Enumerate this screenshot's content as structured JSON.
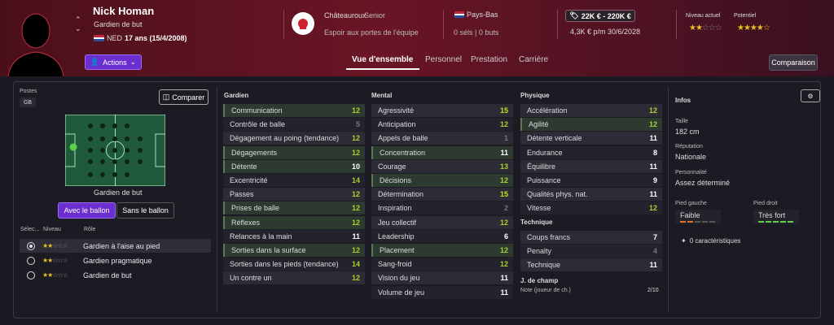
{
  "header": {
    "name": "Nick Homan",
    "role": "Gardien de but",
    "nationality": "NED",
    "age": "17 ans (15/4/2008)",
    "actions_label": "Actions",
    "club": {
      "name": "Châteauroux",
      "level": "Senior",
      "description": "Espoir aux portes de l'équipe"
    },
    "national_team": {
      "name": "Pays-Bas",
      "caps": "0 séls | 0 buts"
    },
    "value": "22K € - 220K €",
    "wage": "4,3K € p/m 30/6/2028",
    "current_ability_label": "Niveau actuel",
    "potential_label": "Potentiel",
    "current_stars": 2,
    "potential_stars": 4.5
  },
  "tabs": [
    "Vue d'ensemble",
    "Personnel",
    "Prestation",
    "Carrière"
  ],
  "compare_label": "Comparaison",
  "left": {
    "positions_label": "Postes",
    "position": "GB",
    "compare_btn": "Comparer",
    "pitch_label": "Gardien de but",
    "with_ball": "Avec le ballon",
    "without_ball": "Sans le ballon",
    "hdr_select": "Sélec...",
    "hdr_level": "Niveau",
    "hdr_role": "Rôle",
    "roles": [
      {
        "name": "Gardien à l'aise au pied",
        "stars": 2,
        "selected": true
      },
      {
        "name": "Gardien pragmatique",
        "stars": 2,
        "selected": false
      },
      {
        "name": "Gardien de but",
        "stars": 2,
        "selected": false
      }
    ]
  },
  "goalkeeping": {
    "title": "Gardien",
    "items": [
      {
        "name": "Communication",
        "value": "12",
        "hl": true
      },
      {
        "name": "Contrôle de balle",
        "value": "5",
        "hl": false
      },
      {
        "name": "Dégagement au poing (tendance)",
        "value": "12",
        "hl": false
      },
      {
        "name": "Dégagements",
        "value": "12",
        "hl": true
      },
      {
        "name": "Détente",
        "value": "10",
        "hl": true
      },
      {
        "name": "Excentricité",
        "value": "14",
        "hl": false
      },
      {
        "name": "Passes",
        "value": "12",
        "hl": false
      },
      {
        "name": "Prises de balle",
        "value": "12",
        "hl": true
      },
      {
        "name": "Réflexes",
        "value": "12",
        "hl": true
      },
      {
        "name": "Relances à la main",
        "value": "11",
        "hl": false
      },
      {
        "name": "Sorties dans la surface",
        "value": "12",
        "hl": true
      },
      {
        "name": "Sorties dans les pieds (tendance)",
        "value": "14",
        "hl": false
      },
      {
        "name": "Un contre un",
        "value": "12",
        "hl": false
      }
    ]
  },
  "mental": {
    "title": "Mental",
    "items": [
      {
        "name": "Agressivité",
        "value": "15",
        "hl": false
      },
      {
        "name": "Anticipation",
        "value": "12",
        "hl": false
      },
      {
        "name": "Appels de balle",
        "value": "1",
        "hl": false
      },
      {
        "name": "Concentration",
        "value": "11",
        "hl": true
      },
      {
        "name": "Courage",
        "value": "13",
        "hl": false
      },
      {
        "name": "Décisions",
        "value": "12",
        "hl": true
      },
      {
        "name": "Détermination",
        "value": "15",
        "hl": false
      },
      {
        "name": "Inspiration",
        "value": "2",
        "hl": false
      },
      {
        "name": "Jeu collectif",
        "value": "12",
        "hl": false
      },
      {
        "name": "Leadership",
        "value": "6",
        "hl": false
      },
      {
        "name": "Placement",
        "value": "12",
        "hl": true
      },
      {
        "name": "Sang-froid",
        "value": "12",
        "hl": false
      },
      {
        "name": "Vision du jeu",
        "value": "11",
        "hl": false
      },
      {
        "name": "Volume de jeu",
        "value": "11",
        "hl": false
      }
    ]
  },
  "physical": {
    "title": "Physique",
    "items": [
      {
        "name": "Accélération",
        "value": "12",
        "hl": false
      },
      {
        "name": "Agilité",
        "value": "12",
        "hl": true
      },
      {
        "name": "Détente verticale",
        "value": "11",
        "hl": false
      },
      {
        "name": "Endurance",
        "value": "8",
        "hl": false
      },
      {
        "name": "Équilibre",
        "value": "11",
        "hl": false
      },
      {
        "name": "Puissance",
        "value": "9",
        "hl": false
      },
      {
        "name": "Qualités phys. nat.",
        "value": "11",
        "hl": false
      },
      {
        "name": "Vitesse",
        "value": "12",
        "hl": false
      }
    ]
  },
  "technique": {
    "title": "Technique",
    "items": [
      {
        "name": "Coups francs",
        "value": "7",
        "hl": false
      },
      {
        "name": "Penalty",
        "value": "4",
        "hl": false
      },
      {
        "name": "Technique",
        "value": "11",
        "hl": false
      }
    ]
  },
  "field_play": {
    "title": "J. de champ",
    "note_label": "Note (joueur de ch.)",
    "note_value": "2/10"
  },
  "info": {
    "title": "Infos",
    "height_label": "Taille",
    "height": "182 cm",
    "reputation_label": "Réputation",
    "reputation": "Nationale",
    "personality_label": "Personnalité",
    "personality": "Assez déterminé",
    "left_foot_label": "Pied gauche",
    "left_foot": "Faible",
    "right_foot_label": "Pied droit",
    "right_foot": "Très fort",
    "traits": "0 caractéristiques"
  },
  "colors": {
    "accent": "#6b2fd0",
    "header": "#5a1220",
    "highlight_green": "#8ad04a",
    "star": "#e8c020"
  }
}
